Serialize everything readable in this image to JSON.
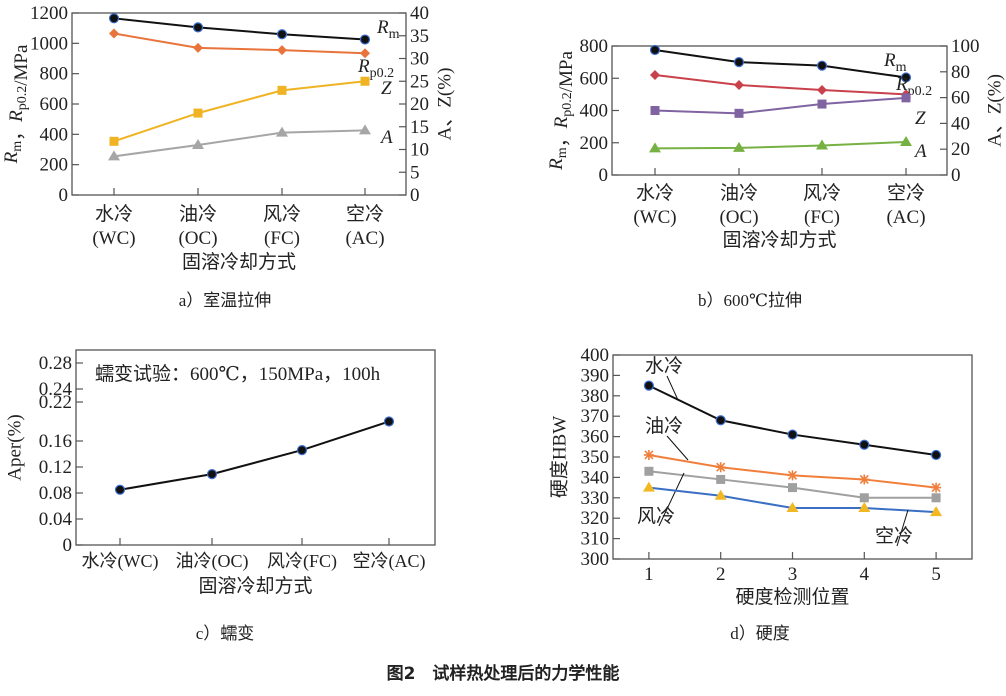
{
  "figure_caption": "图2　试样热处理后的力学性能",
  "chart_data": [
    {
      "id": "a",
      "type": "line",
      "caption": "a）室温拉伸",
      "categories": [
        "水冷|(WC)",
        "油冷|(OC)",
        "风冷|(FC)",
        "空冷|(AC)"
      ],
      "xlabel": "固溶冷却方式",
      "ylabel": "Rm，Rp0.2/MPa",
      "y2label": "A、Z(%)",
      "ylim": [
        0,
        1200
      ],
      "yticks": [
        0,
        200,
        400,
        600,
        800,
        1000,
        1200
      ],
      "y2lim": [
        0,
        40
      ],
      "y2ticks": [
        0,
        5,
        10,
        15,
        20,
        25,
        30,
        35,
        40
      ],
      "grid": false,
      "series": [
        {
          "name": "Rm",
          "axis": "left",
          "marker": "circle",
          "color": "#111111",
          "values": [
            1165,
            1105,
            1060,
            1025
          ]
        },
        {
          "name": "Rp0.2",
          "axis": "left",
          "marker": "diamond",
          "color": "#e8743b",
          "values": [
            1065,
            970,
            955,
            935
          ]
        },
        {
          "name": "Z",
          "axis": "right",
          "marker": "square",
          "color": "#f0b323",
          "values": [
            11.8,
            18.0,
            23.0,
            25.0
          ]
        },
        {
          "name": "A",
          "axis": "right",
          "marker": "triangle",
          "color": "#a6a6a6",
          "values": [
            8.5,
            11.0,
            13.7,
            14.2
          ]
        }
      ]
    },
    {
      "id": "b",
      "type": "line",
      "caption": "b）600℃拉伸",
      "categories": [
        "水冷|(WC)",
        "油冷|(OC)",
        "风冷|(FC)",
        "空冷|(AC)"
      ],
      "xlabel": "固溶冷却方式",
      "ylabel": "Rm，Rp0.2/MPa",
      "y2label": "A、Z(%)",
      "ylim": [
        0,
        800
      ],
      "yticks": [
        0,
        200,
        400,
        600,
        800
      ],
      "y2lim": [
        0,
        100
      ],
      "y2ticks": [
        0,
        20,
        40,
        60,
        80,
        100
      ],
      "grid": false,
      "series": [
        {
          "name": "Rm",
          "axis": "left",
          "marker": "circle",
          "color": "#111111",
          "values": [
            775,
            700,
            678,
            605
          ]
        },
        {
          "name": "Rp0.2",
          "axis": "left",
          "marker": "diamond",
          "color": "#c8414b",
          "values": [
            620,
            558,
            527,
            500
          ]
        },
        {
          "name": "Z",
          "axis": "right",
          "marker": "square",
          "color": "#8064a2",
          "values": [
            50.0,
            47.8,
            55.0,
            59.8
          ]
        },
        {
          "name": "A",
          "axis": "right",
          "marker": "triangle",
          "color": "#77b144",
          "values": [
            20.6,
            21.0,
            22.9,
            25.6
          ]
        }
      ]
    },
    {
      "id": "c",
      "type": "line",
      "caption": "c）蠕变",
      "annotation": "蠕变试验：600℃，150MPa，100h",
      "categories": [
        "水冷(WC)",
        "油冷(OC)",
        "风冷(FC)",
        "空冷(AC)"
      ],
      "xlabel": "固溶冷却方式",
      "ylabel": "Aper(%)",
      "ylim": [
        0,
        0.3
      ],
      "yticks": [
        0,
        0.04,
        0.08,
        0.12,
        0.16,
        0.22,
        0.24,
        0.28
      ],
      "ytick_labels": [
        "0",
        "0.04",
        "0.08",
        "0.12",
        "0.16",
        "0.22",
        "0.24",
        "0.28"
      ],
      "grid": false,
      "series": [
        {
          "axis": "left",
          "marker": "circle",
          "color": "#111111",
          "values": [
            0.085,
            0.109,
            0.146,
            0.19
          ]
        }
      ]
    },
    {
      "id": "d",
      "type": "line",
      "caption": "d）硬度",
      "x": [
        1,
        2,
        3,
        4,
        5
      ],
      "xlim": [
        0.5,
        5.5
      ],
      "xlabel": "硬度检测位置",
      "ylabel": "硬度HBW",
      "ylim": [
        300,
        400
      ],
      "yticks": [
        300,
        310,
        320,
        330,
        340,
        350,
        360,
        370,
        380,
        390,
        400
      ],
      "grid": false,
      "series": [
        {
          "name": "水冷",
          "marker": "circle",
          "color": "#111111",
          "values": [
            385,
            368,
            361,
            356,
            351
          ]
        },
        {
          "name": "油冷",
          "marker": "asterisk",
          "color": "#f07f3c",
          "values": [
            351,
            345,
            341,
            339,
            335
          ]
        },
        {
          "name": "风冷",
          "marker": "square",
          "color": "#a0a0a0",
          "values": [
            343,
            339,
            335,
            330,
            330
          ]
        },
        {
          "name": "空冷",
          "marker": "triangle",
          "color": "#3a6fc4",
          "marker_color": "#f2b824",
          "values": [
            335,
            331,
            325,
            325,
            323
          ]
        }
      ]
    }
  ]
}
